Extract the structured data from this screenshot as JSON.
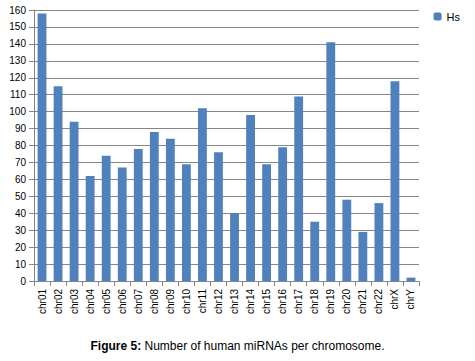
{
  "chart_data": {
    "type": "bar",
    "title": "Figure 5: Number of human miRNAs per chromosome.",
    "categories": [
      "chr01",
      "chr02",
      "chr03",
      "chr04",
      "chr05",
      "chr06",
      "chr07",
      "chr08",
      "chr09",
      "chr10",
      "chr11",
      "chr12",
      "chr13",
      "chr14",
      "chr15",
      "chr16",
      "chr17",
      "chr18",
      "chr19",
      "chr20",
      "chr21",
      "chr22",
      "chrX",
      "chrY"
    ],
    "series": [
      {
        "name": "Hs",
        "color": "#4f81bd",
        "values": [
          158,
          115,
          94,
          62,
          74,
          67,
          78,
          88,
          84,
          69,
          102,
          76,
          40,
          98,
          69,
          79,
          109,
          35,
          141,
          48,
          29,
          46,
          118,
          2
        ]
      }
    ],
    "ylim": [
      0,
      160
    ],
    "yticks": [
      0,
      10,
      20,
      30,
      40,
      50,
      60,
      70,
      80,
      90,
      100,
      110,
      120,
      130,
      140,
      150,
      160
    ],
    "grid": true,
    "legend": "top-right"
  }
}
